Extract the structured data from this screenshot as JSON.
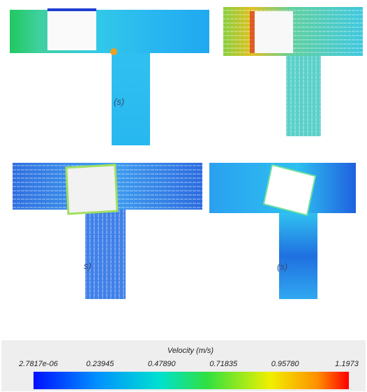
{
  "panels": [
    {
      "label": "(s)"
    },
    {
      "label": "s)"
    },
    {
      "label": "(s)"
    }
  ],
  "colorbar": {
    "title": "Velocity (m/s)",
    "ticks": [
      "2.7817e-06",
      "0.23945",
      "0.47890",
      "0.71835",
      "0.95780",
      "1.1973"
    ]
  }
}
